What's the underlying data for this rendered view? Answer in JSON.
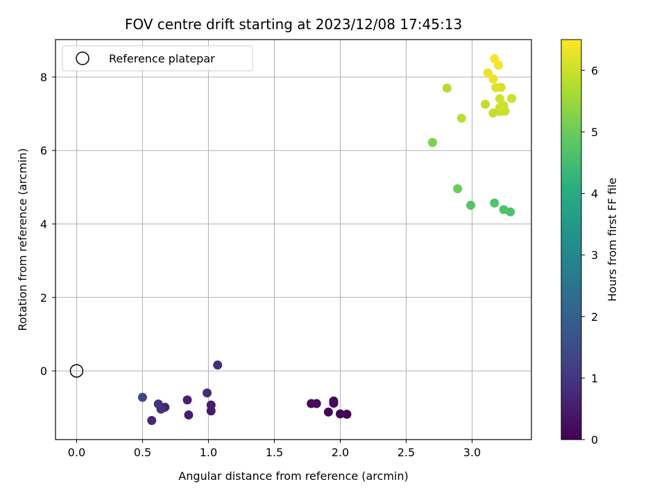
{
  "chart_data": {
    "type": "scatter",
    "title": "FOV centre drift starting at 2023/12/08 17:45:13",
    "xlabel": "Angular distance from reference (arcmin)",
    "ylabel": "Rotation from reference (arcmin)",
    "xlim": [
      -0.16,
      3.45
    ],
    "ylim": [
      -1.87,
      9.02
    ],
    "xticks": [
      0.0,
      0.5,
      1.0,
      1.5,
      2.0,
      2.5,
      3.0
    ],
    "xtick_labels": [
      "0.0",
      "0.5",
      "1.0",
      "1.5",
      "2.0",
      "2.5",
      "3.0"
    ],
    "yticks": [
      0,
      2,
      4,
      6,
      8
    ],
    "ytick_labels": [
      "0",
      "2",
      "4",
      "6",
      "8"
    ],
    "grid": true,
    "legend": {
      "placement": "top-left",
      "entries": [
        "Reference platepar"
      ]
    },
    "reference_point": {
      "x": 0.0,
      "y": 0.0
    },
    "colorbar": {
      "label": "Hours from first FF file",
      "colormap": "viridis",
      "range": [
        0,
        6.5
      ],
      "ticks": [
        0,
        1,
        2,
        3,
        4,
        5,
        6
      ],
      "tick_labels": [
        "0",
        "1",
        "2",
        "3",
        "4",
        "5",
        "6"
      ]
    },
    "points": [
      {
        "x": 2.05,
        "y": -1.18,
        "c": 0.02
      },
      {
        "x": 2.0,
        "y": -1.17,
        "c": 0.05
      },
      {
        "x": 1.91,
        "y": -1.12,
        "c": 0.08
      },
      {
        "x": 1.95,
        "y": -0.88,
        "c": 0.11
      },
      {
        "x": 1.95,
        "y": -0.82,
        "c": 0.14
      },
      {
        "x": 1.82,
        "y": -0.89,
        "c": 0.17
      },
      {
        "x": 1.78,
        "y": -0.89,
        "c": 0.2
      },
      {
        "x": 1.02,
        "y": -1.09,
        "c": 0.45
      },
      {
        "x": 1.02,
        "y": -0.93,
        "c": 0.5
      },
      {
        "x": 0.85,
        "y": -1.2,
        "c": 0.55
      },
      {
        "x": 0.84,
        "y": -0.79,
        "c": 0.6
      },
      {
        "x": 0.67,
        "y": -0.99,
        "c": 0.65
      },
      {
        "x": 0.57,
        "y": -1.35,
        "c": 0.7
      },
      {
        "x": 0.99,
        "y": -0.6,
        "c": 0.75
      },
      {
        "x": 1.07,
        "y": 0.16,
        "c": 0.8
      },
      {
        "x": 0.64,
        "y": -1.04,
        "c": 0.9
      },
      {
        "x": 0.62,
        "y": -0.9,
        "c": 0.95
      },
      {
        "x": 0.5,
        "y": -0.72,
        "c": 1.3
      },
      {
        "x": 3.29,
        "y": 4.33,
        "c": 4.6
      },
      {
        "x": 3.24,
        "y": 4.39,
        "c": 4.65
      },
      {
        "x": 3.17,
        "y": 4.57,
        "c": 4.7
      },
      {
        "x": 2.99,
        "y": 4.51,
        "c": 4.72
      },
      {
        "x": 2.89,
        "y": 4.96,
        "c": 5.0
      },
      {
        "x": 2.7,
        "y": 6.22,
        "c": 5.2
      },
      {
        "x": 2.92,
        "y": 6.88,
        "c": 5.8
      },
      {
        "x": 2.81,
        "y": 7.7,
        "c": 5.75
      },
      {
        "x": 3.1,
        "y": 7.26,
        "c": 5.85
      },
      {
        "x": 3.16,
        "y": 7.02,
        "c": 5.9
      },
      {
        "x": 3.21,
        "y": 7.06,
        "c": 5.92
      },
      {
        "x": 3.25,
        "y": 7.07,
        "c": 5.95
      },
      {
        "x": 3.24,
        "y": 7.22,
        "c": 5.98
      },
      {
        "x": 3.21,
        "y": 7.17,
        "c": 6.0
      },
      {
        "x": 3.3,
        "y": 7.42,
        "c": 6.0
      },
      {
        "x": 3.21,
        "y": 7.41,
        "c": 6.05
      },
      {
        "x": 3.22,
        "y": 7.72,
        "c": 6.1
      },
      {
        "x": 3.18,
        "y": 7.71,
        "c": 6.15
      },
      {
        "x": 3.12,
        "y": 8.11,
        "c": 6.3
      },
      {
        "x": 3.16,
        "y": 7.95,
        "c": 6.3
      },
      {
        "x": 3.2,
        "y": 8.32,
        "c": 6.4
      },
      {
        "x": 3.17,
        "y": 8.5,
        "c": 6.45
      }
    ]
  }
}
